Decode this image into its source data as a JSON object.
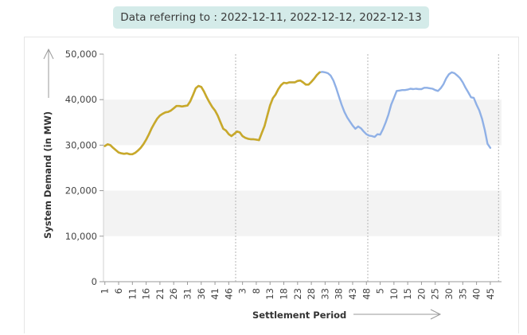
{
  "banner": {
    "text": "Data referring to : 2022-12-11, 2022-12-12, 2022-12-13"
  },
  "chart_data": {
    "type": "line",
    "xlabel": "Settlement Period",
    "ylabel": "System Demand (in MW)",
    "ylim": [
      0,
      50000
    ],
    "yticks": [
      0,
      10000,
      20000,
      30000,
      40000,
      50000
    ],
    "ytick_labels": [
      "0",
      "10,000",
      "20,000",
      "30,000",
      "40,000",
      "50,000"
    ],
    "x_tick_labels": [
      "1",
      "6",
      "11",
      "16",
      "21",
      "26",
      "31",
      "36",
      "41",
      "46",
      "3",
      "8",
      "13",
      "18",
      "23",
      "28",
      "33",
      "38",
      "43",
      "48",
      "5",
      "10",
      "15",
      "20",
      "25",
      "30",
      "35",
      "40",
      "45"
    ],
    "x_tick_positions": [
      1,
      6,
      11,
      16,
      21,
      26,
      31,
      36,
      41,
      46,
      51,
      56,
      61,
      66,
      71,
      76,
      81,
      86,
      91,
      96,
      101,
      106,
      111,
      116,
      121,
      126,
      131,
      136,
      141
    ],
    "x_total_periods": 144,
    "day_boundaries": [
      48.5,
      96.5,
      144
    ],
    "grid_bands": true,
    "series": [
      {
        "color": "#c9a92a",
        "x_start": 1,
        "values": [
          29800,
          30200,
          30000,
          29400,
          28900,
          28400,
          28200,
          28100,
          28200,
          28000,
          28000,
          28300,
          28800,
          29400,
          30200,
          31200,
          32400,
          33700,
          34800,
          35800,
          36500,
          36900,
          37200,
          37300,
          37600,
          38100,
          38600,
          38600,
          38500,
          38600,
          38700,
          39600,
          41000,
          42500,
          43000,
          42800,
          41800,
          40500,
          39400,
          38400,
          37600,
          36500,
          35000,
          33600,
          33200,
          32400,
          32000,
          32500,
          33000,
          32800,
          32000,
          31600,
          31400,
          31300,
          31300,
          31200,
          31100,
          32700,
          34200,
          36500,
          38700,
          40300,
          41100,
          42300,
          43200,
          43700,
          43600,
          43800,
          43800,
          43800,
          44100,
          44200,
          43800,
          43300,
          43300,
          43900,
          44600,
          45400,
          46000
        ]
      },
      {
        "color": "#8fb0e6",
        "x_start": 1,
        "values": [
          29800,
          30200,
          30000,
          29400,
          28900,
          28400,
          28200,
          28100,
          28200,
          28000,
          28000,
          28300,
          28800,
          29400,
          30200,
          31200,
          32400,
          33700,
          34800,
          35800,
          36500,
          36900,
          37200,
          37300,
          37600,
          38100,
          38600,
          38600,
          38500,
          38600,
          38700,
          39600,
          41000,
          42500,
          43000,
          42800,
          41800,
          40500,
          39400,
          38400,
          37600,
          36500,
          35000,
          33600,
          33200,
          32400,
          32000,
          32500,
          33000,
          32800,
          32000,
          31600,
          31400,
          31300,
          31300,
          31200,
          31100,
          32700,
          34200,
          36500,
          38700,
          40300,
          41100,
          42300,
          43200,
          43700,
          43600,
          43800,
          43800,
          43800,
          44100,
          44200,
          43800,
          43300,
          43300,
          43900,
          44600,
          45400,
          46000,
          46100,
          46000,
          45800,
          45300,
          44200,
          42600,
          40700,
          38900,
          37300,
          36100,
          35200,
          34300,
          33600,
          34100,
          33700,
          33000,
          32400,
          32100,
          32000,
          31800,
          32400,
          32300,
          33500,
          35000,
          36700,
          38900,
          40400,
          41900,
          42000,
          42100,
          42100,
          42200,
          42400,
          42300,
          42400,
          42300,
          42300,
          42600,
          42600,
          42500,
          42400,
          42100,
          41900,
          42500,
          43400,
          44700,
          45600,
          46000,
          45800,
          45300,
          44700,
          43800,
          42600,
          41600,
          40500,
          40400,
          38900,
          37600,
          35800,
          33300,
          30300,
          29400
        ]
      }
    ]
  }
}
